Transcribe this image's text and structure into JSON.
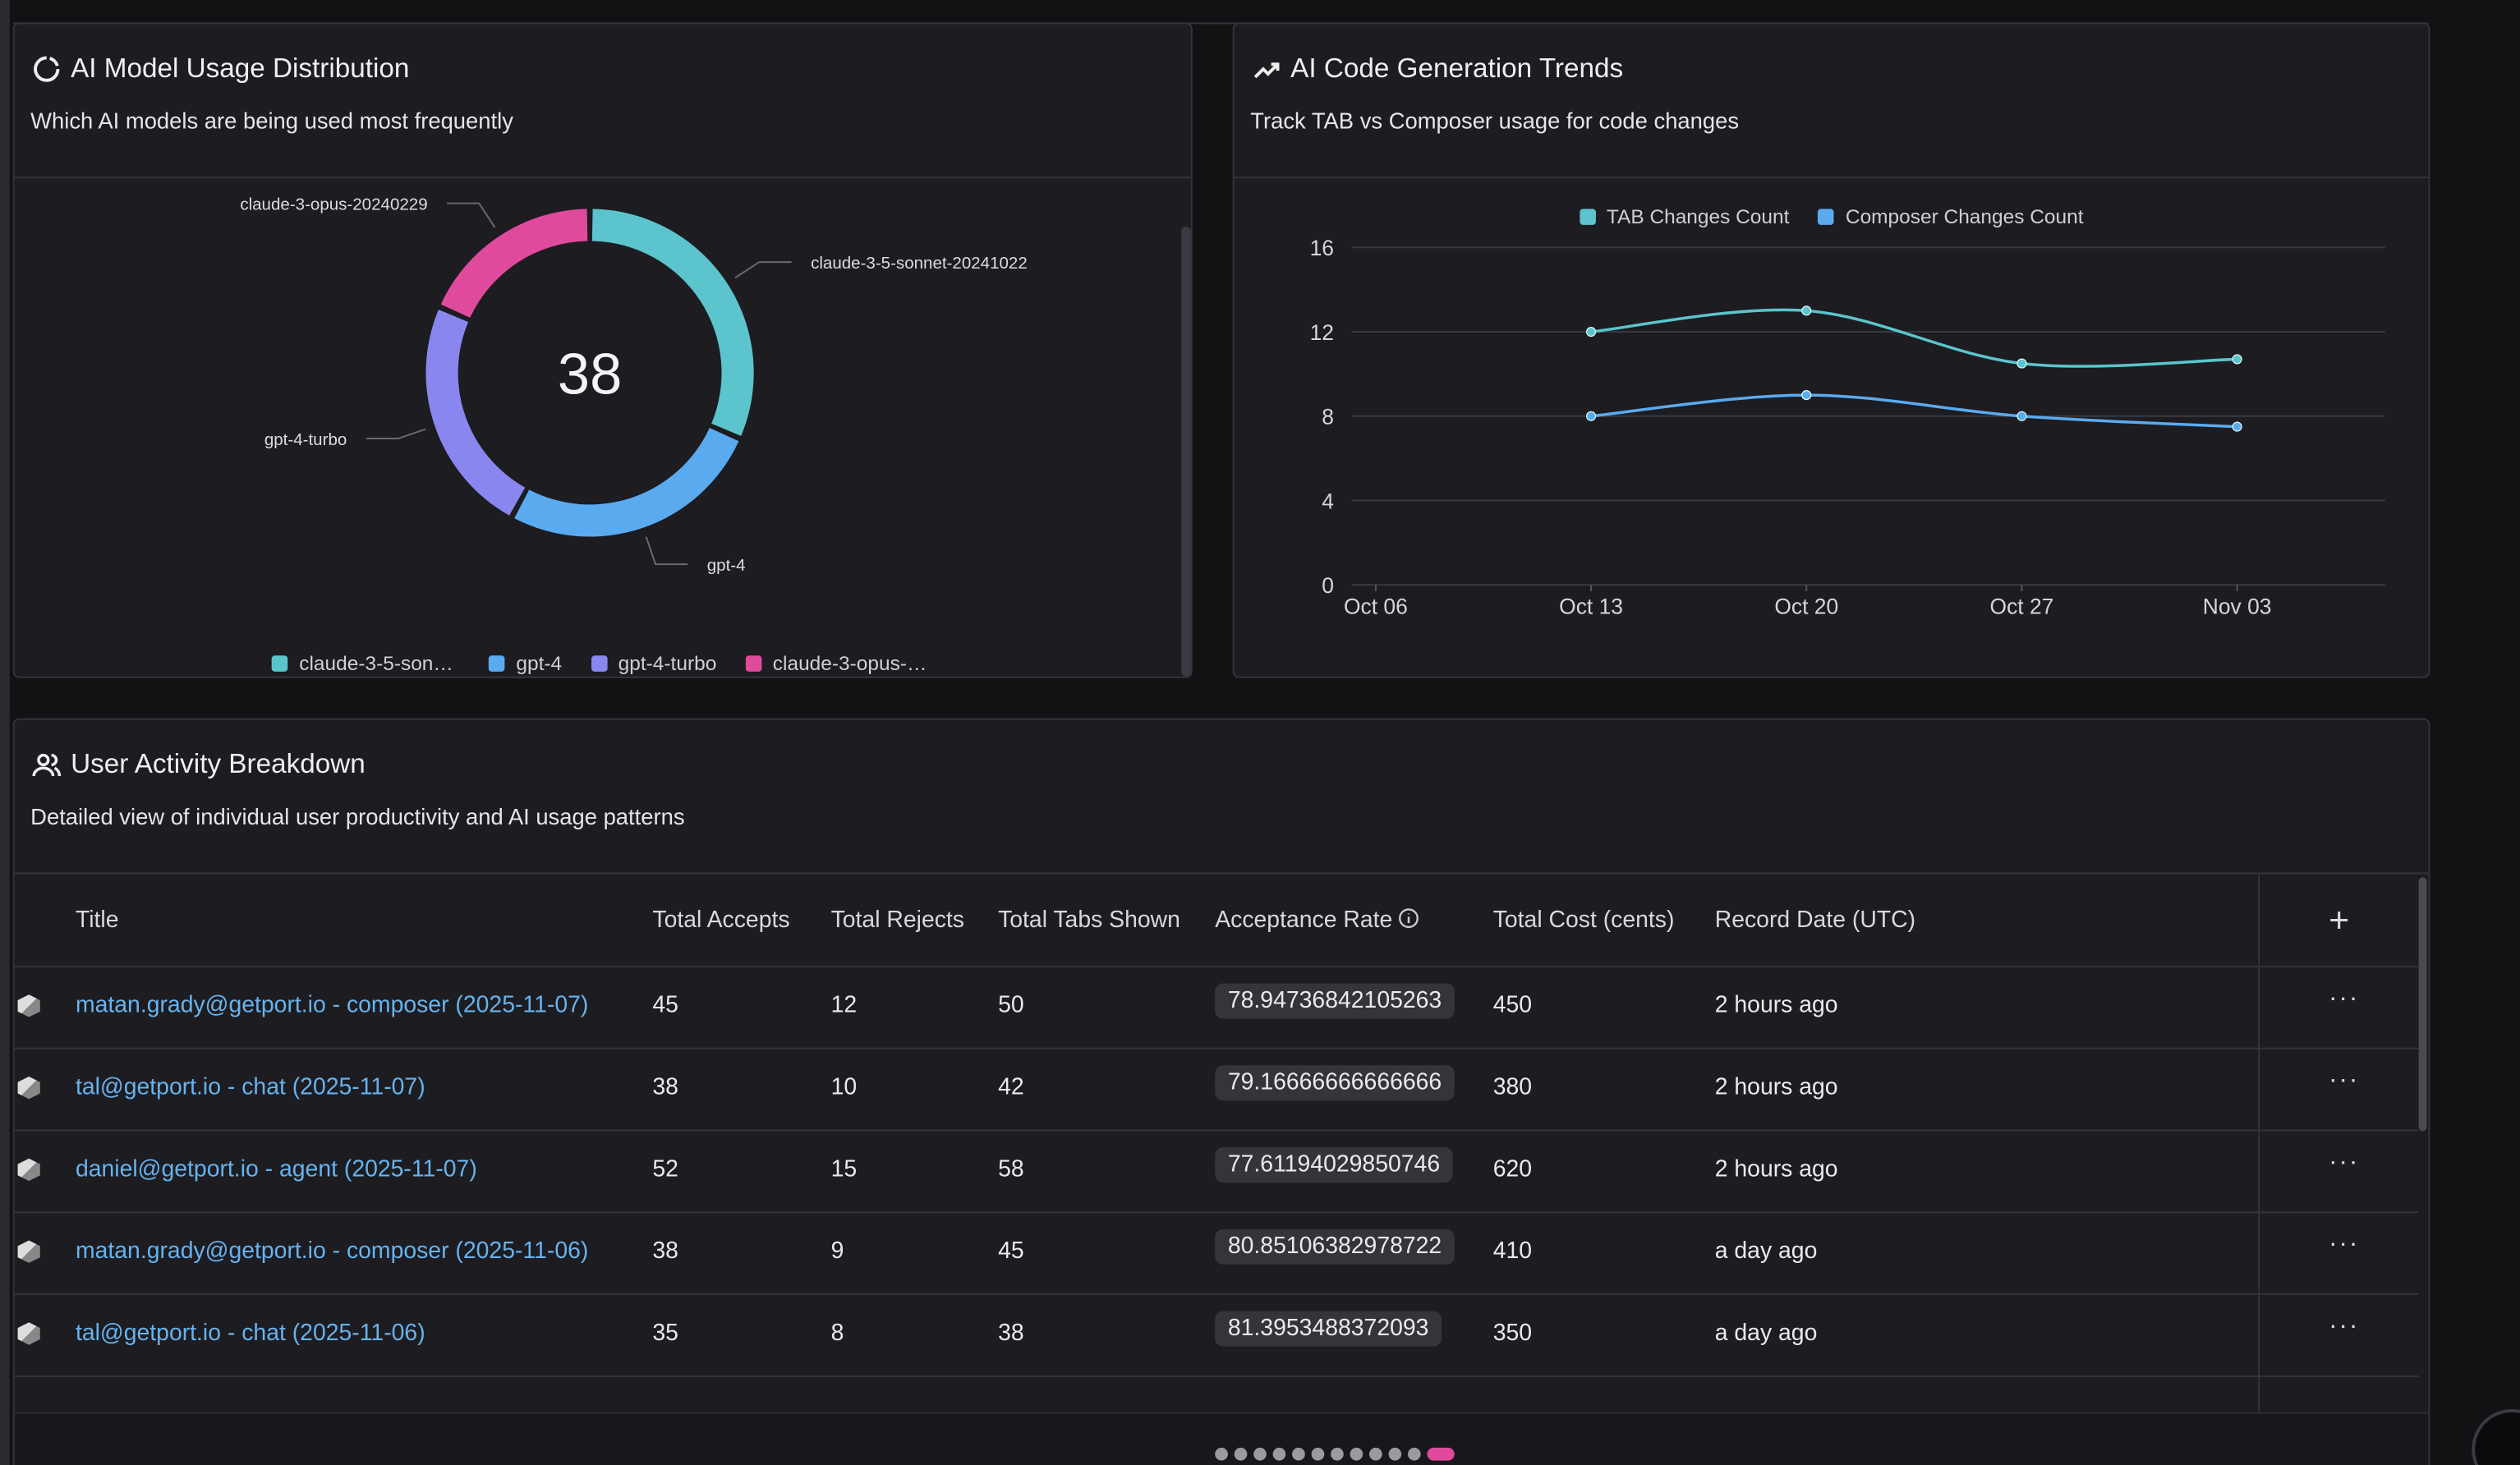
{
  "panels": {
    "usage": {
      "title": "AI Model Usage Distribution",
      "subtitle": "Which AI models are being used most frequently"
    },
    "trends": {
      "title": "AI Code Generation Trends",
      "subtitle": "Track TAB vs Composer usage for code changes"
    },
    "activity": {
      "title": "User Activity Breakdown",
      "subtitle": "Detailed view of individual user productivity and AI usage patterns"
    }
  },
  "chart_data": [
    {
      "type": "pie",
      "categories": [
        "claude-3-5-sonnet-20241022",
        "gpt-4",
        "gpt-4-turbo",
        "claude-3-opus-20240229"
      ],
      "values": [
        12,
        10,
        9,
        7
      ],
      "colors": [
        "#5cc4cc",
        "#5aaaf0",
        "#8a86f0",
        "#e04a9c"
      ],
      "total": 38,
      "legend": "bottom"
    },
    {
      "type": "line",
      "categories": [
        "Oct 06",
        "Oct 13",
        "Oct 20",
        "Oct 27",
        "Nov 03"
      ],
      "series": [
        {
          "name": "TAB Changes Count",
          "color": "#5cc4cc",
          "values": [
            null,
            12,
            13,
            10.5,
            10.7
          ]
        },
        {
          "name": "Composer Changes Count",
          "color": "#5aaaf0",
          "values": [
            null,
            8,
            9,
            8,
            7.5
          ]
        }
      ],
      "ylim": [
        0,
        16
      ],
      "yticks": [
        0,
        4,
        8,
        12,
        16
      ],
      "grid": true,
      "legend": "top"
    }
  ],
  "table": {
    "columns": [
      "Title",
      "Total Accepts",
      "Total Rejects",
      "Total Tabs Shown",
      "Acceptance Rate",
      "Total Cost (cents)",
      "Record Date (UTC)"
    ],
    "rows": [
      [
        "matan.grady@getport.io - composer (2025-11-07)",
        "45",
        "12",
        "50",
        "78.94736842105263",
        "450",
        "2 hours ago"
      ],
      [
        "tal@getport.io - chat (2025-11-07)",
        "38",
        "10",
        "42",
        "79.16666666666666",
        "380",
        "2 hours ago"
      ],
      [
        "daniel@getport.io - agent (2025-11-07)",
        "52",
        "15",
        "58",
        "77.61194029850746",
        "620",
        "2 hours ago"
      ],
      [
        "matan.grady@getport.io - composer (2025-11-06)",
        "38",
        "9",
        "45",
        "80.85106382978722",
        "410",
        "a day ago"
      ],
      [
        "tal@getport.io - chat (2025-11-06)",
        "35",
        "8",
        "38",
        "81.3953488372093",
        "350",
        "a day ago"
      ]
    ]
  }
}
